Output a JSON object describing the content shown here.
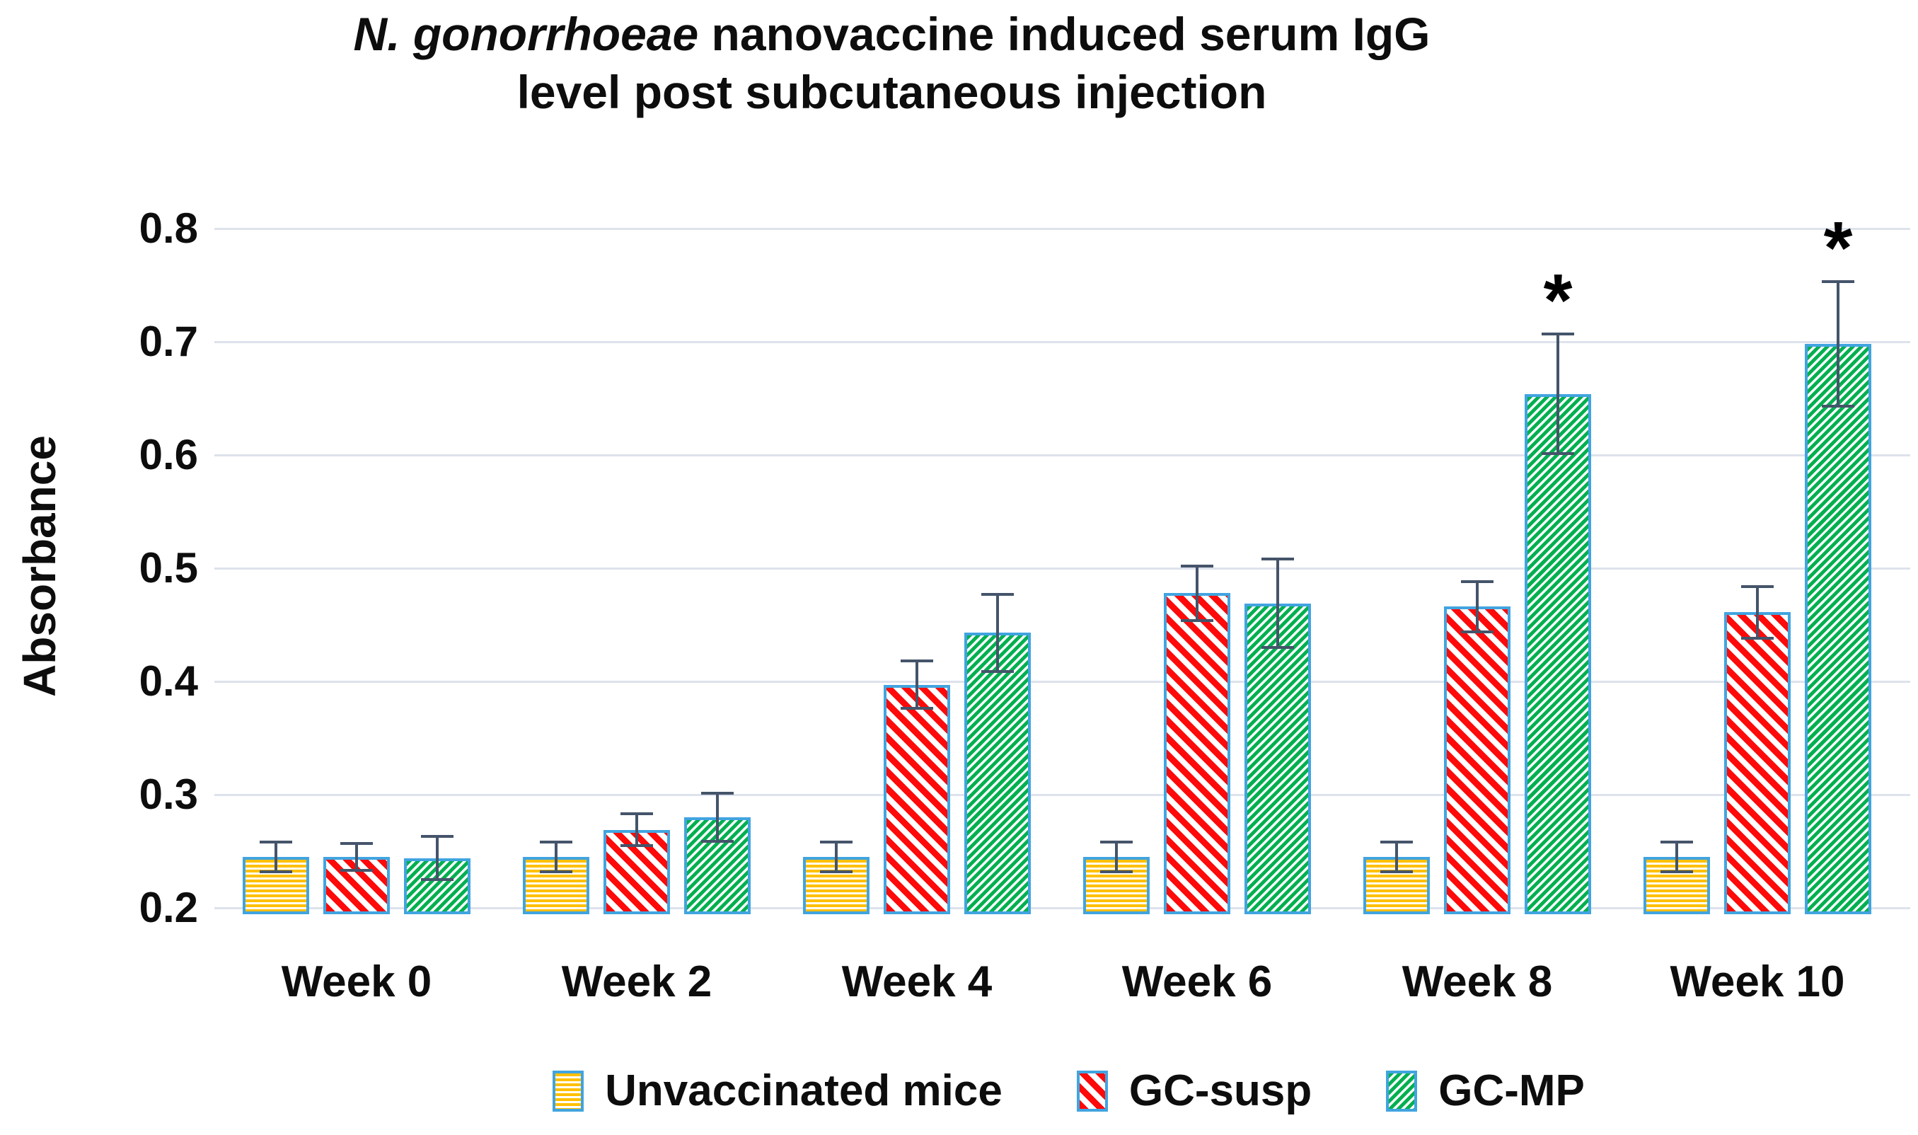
{
  "figure": {
    "title_italic": "N. gonorrhoeae",
    "title_rest": " nanovaccine induced serum IgG",
    "title_line2": "level post subcutaneous injection"
  },
  "chart_data": {
    "type": "bar",
    "title": "N. gonorrhoeae nanovaccine induced serum IgG level post subcutaneous injection",
    "xlabel": "",
    "ylabel": "Absorbance",
    "ylim": [
      0.2,
      0.8
    ],
    "yticks": [
      0.2,
      0.3,
      0.4,
      0.5,
      0.6,
      0.7,
      0.8
    ],
    "gridlines": true,
    "legend_position": "bottom",
    "categories": [
      "Week 0",
      "Week 2",
      "Week 4",
      "Week 6",
      "Week 8",
      "Week 10"
    ],
    "series": [
      {
        "name": "Unvaccinated mice",
        "pattern": "yellow-horizontal-stripes",
        "color": "#FFC000",
        "values": [
          0.245,
          0.245,
          0.245,
          0.245,
          0.245,
          0.245
        ],
        "errors": [
          0.013,
          0.013,
          0.013,
          0.013,
          0.013,
          0.013
        ],
        "significance": [
          "",
          "",
          "",
          "",
          "",
          ""
        ]
      },
      {
        "name": "GC-susp",
        "pattern": "red-diagonal-stripes",
        "color": "#FF0000",
        "values": [
          0.245,
          0.269,
          0.397,
          0.478,
          0.466,
          0.461
        ],
        "errors": [
          0.012,
          0.014,
          0.021,
          0.024,
          0.022,
          0.023
        ],
        "significance": [
          "",
          "",
          "",
          "",
          "",
          ""
        ]
      },
      {
        "name": "GC-MP",
        "pattern": "green-diagonal-stripes",
        "color": "#00B050",
        "values": [
          0.244,
          0.28,
          0.443,
          0.469,
          0.654,
          0.698
        ],
        "errors": [
          0.019,
          0.021,
          0.034,
          0.039,
          0.053,
          0.055
        ],
        "significance": [
          "",
          "",
          "",
          "",
          "*",
          "*"
        ]
      }
    ],
    "bar_outline_color": "#41A4E0",
    "error_bar_color": "#44546A",
    "significance_symbol": "*"
  }
}
